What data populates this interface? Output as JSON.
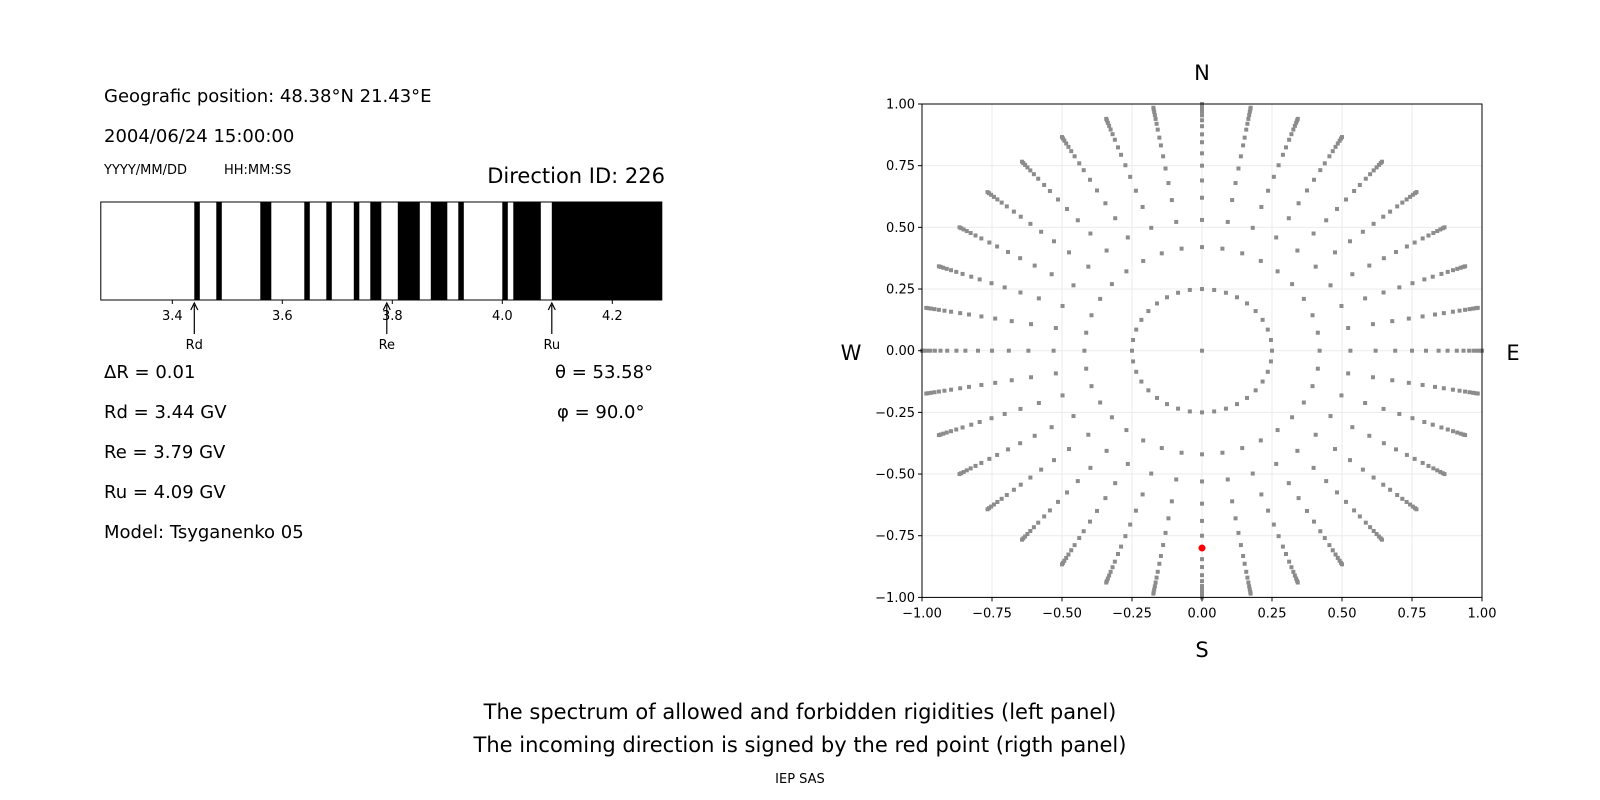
{
  "left_panel": {
    "position": "Geografic position: 48.38°N 21.43°E",
    "datetime": "2004/06/24 15:00:00",
    "date_format": "YYYY/MM/DD",
    "time_format": "HH:MM:SS",
    "direction_id": "Direction ID: 226",
    "delta_r": "ΔR = 0.01",
    "rd": "Rd = 3.44 GV",
    "re": "Re = 3.79 GV",
    "ru": "Ru = 4.09 GV",
    "model": "Model: Tsyganenko 05",
    "theta": "θ = 53.58°",
    "phi": "φ = 90.0°"
  },
  "captions": {
    "line1": "The spectrum of allowed and forbidden rigidities (left panel)",
    "line2": "The incoming direction is signed by the red point (rigth panel)",
    "credit": "IEP SAS"
  },
  "chart_data": [
    {
      "type": "bar",
      "description_kind": "rigidity spectrum",
      "xlim": [
        3.27,
        4.29
      ],
      "xticks": [
        "3.4",
        "3.6",
        "3.8",
        "4.0",
        "4.2"
      ],
      "xtick_values": [
        3.4,
        3.6,
        3.8,
        4.0,
        4.2
      ],
      "forbidden_bands": [
        [
          3.44,
          3.45
        ],
        [
          3.48,
          3.49
        ],
        [
          3.56,
          3.58
        ],
        [
          3.64,
          3.65
        ],
        [
          3.68,
          3.69
        ],
        [
          3.73,
          3.74
        ],
        [
          3.76,
          3.78
        ],
        [
          3.81,
          3.85
        ],
        [
          3.87,
          3.9
        ],
        [
          3.92,
          3.93
        ],
        [
          4.0,
          4.01
        ],
        [
          4.02,
          4.07
        ],
        [
          4.09,
          4.29
        ]
      ],
      "markers": [
        {
          "label": "Rd",
          "value": 3.44
        },
        {
          "label": "Re",
          "value": 3.79
        },
        {
          "label": "Ru",
          "value": 4.09
        }
      ],
      "colors": {
        "forbidden": "#000000",
        "allowed": "#ffffff"
      }
    },
    {
      "type": "scatter",
      "xlim": [
        -1,
        1
      ],
      "ylim": [
        -1,
        1
      ],
      "ticks": [
        -1,
        -0.75,
        -0.5,
        -0.25,
        0,
        0.25,
        0.5,
        0.75,
        1
      ],
      "tick_labels": [
        "−1.00",
        "−0.75",
        "−0.50",
        "−0.25",
        "0.00",
        "0.25",
        "0.50",
        "0.75",
        "1.00"
      ],
      "grid": true,
      "compass": {
        "north": "N",
        "south": "S",
        "west": "W",
        "east": "E"
      },
      "azimuth_step_deg": 10,
      "radii": [
        0.25,
        0.42,
        0.53,
        0.62,
        0.69,
        0.75,
        0.8,
        0.845,
        0.877,
        0.91,
        0.934,
        0.954,
        0.97,
        0.983,
        0.993,
        1.0
      ],
      "center_point": [
        0,
        0
      ],
      "highlight_point": {
        "x": 0,
        "y": -0.8,
        "color": "#ff0000"
      },
      "point_color": "#8c8c8c"
    }
  ]
}
